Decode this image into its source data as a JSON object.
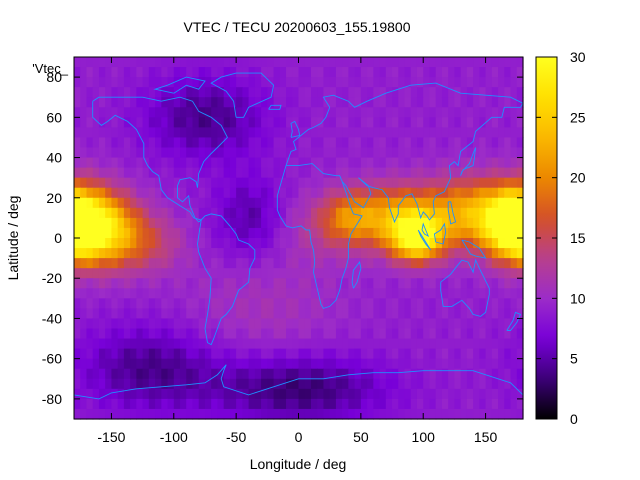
{
  "chart_data": {
    "type": "heatmap",
    "title": "VTEC / TECU 20200603_155.19800",
    "xlabel": "Longitude / deg",
    "ylabel": "Latitude / deg",
    "series_key": "'Vtec_",
    "xlim": [
      -180,
      180
    ],
    "ylim": [
      -90,
      90
    ],
    "x_ticks": [
      -150,
      -100,
      -50,
      0,
      50,
      100,
      150
    ],
    "y_ticks": [
      -80,
      -60,
      -40,
      -20,
      0,
      20,
      40,
      60,
      80
    ],
    "colorbar": {
      "min": 0,
      "max": 30,
      "ticks": [
        0,
        5,
        10,
        15,
        20,
        25,
        30
      ],
      "palette": [
        "#000000",
        "#3c0078",
        "#7800d8",
        "#9c2cc8",
        "#b8408c",
        "#d45028",
        "#ec8800",
        "#fab800",
        "#ffe000",
        "#ffff20"
      ]
    },
    "coastline_color": "#1e90ff",
    "tec_features": [
      {
        "lon": -175,
        "lat": 8,
        "value": 24,
        "spread_lon": 22,
        "spread_lat": 13
      },
      {
        "lon": -150,
        "lat": 2,
        "value": 20,
        "spread_lon": 20,
        "spread_lat": 12
      },
      {
        "lon": -115,
        "lat": -3,
        "value": 13,
        "spread_lon": 18,
        "spread_lat": 10
      },
      {
        "lon": 95,
        "lat": 0,
        "value": 27,
        "spread_lon": 14,
        "spread_lat": 8
      },
      {
        "lon": 75,
        "lat": 10,
        "value": 21,
        "spread_lon": 25,
        "spread_lat": 11
      },
      {
        "lon": 140,
        "lat": 12,
        "value": 22,
        "spread_lon": 30,
        "spread_lat": 12
      },
      {
        "lon": 175,
        "lat": 5,
        "value": 26,
        "spread_lon": 15,
        "spread_lat": 10
      },
      {
        "lon": 40,
        "lat": 10,
        "value": 16,
        "spread_lon": 15,
        "spread_lat": 9
      },
      {
        "lon": 15,
        "lat": 5,
        "value": 12,
        "spread_lon": 20,
        "spread_lat": 12
      },
      {
        "lon": -30,
        "lat": -35,
        "value": 11,
        "spread_lon": 45,
        "spread_lat": 20
      }
    ],
    "tec_background": 9,
    "tec_minima": [
      {
        "lon": -75,
        "lat": 60,
        "value": 4,
        "spread_lon": 35,
        "spread_lat": 15
      },
      {
        "lon": -120,
        "lat": -65,
        "value": 4,
        "spread_lon": 40,
        "spread_lat": 15
      },
      {
        "lon": 0,
        "lat": -75,
        "value": 3,
        "spread_lon": 50,
        "spread_lat": 12
      },
      {
        "lon": -40,
        "lat": 10,
        "value": 5,
        "spread_lon": 20,
        "spread_lat": 15
      }
    ]
  }
}
